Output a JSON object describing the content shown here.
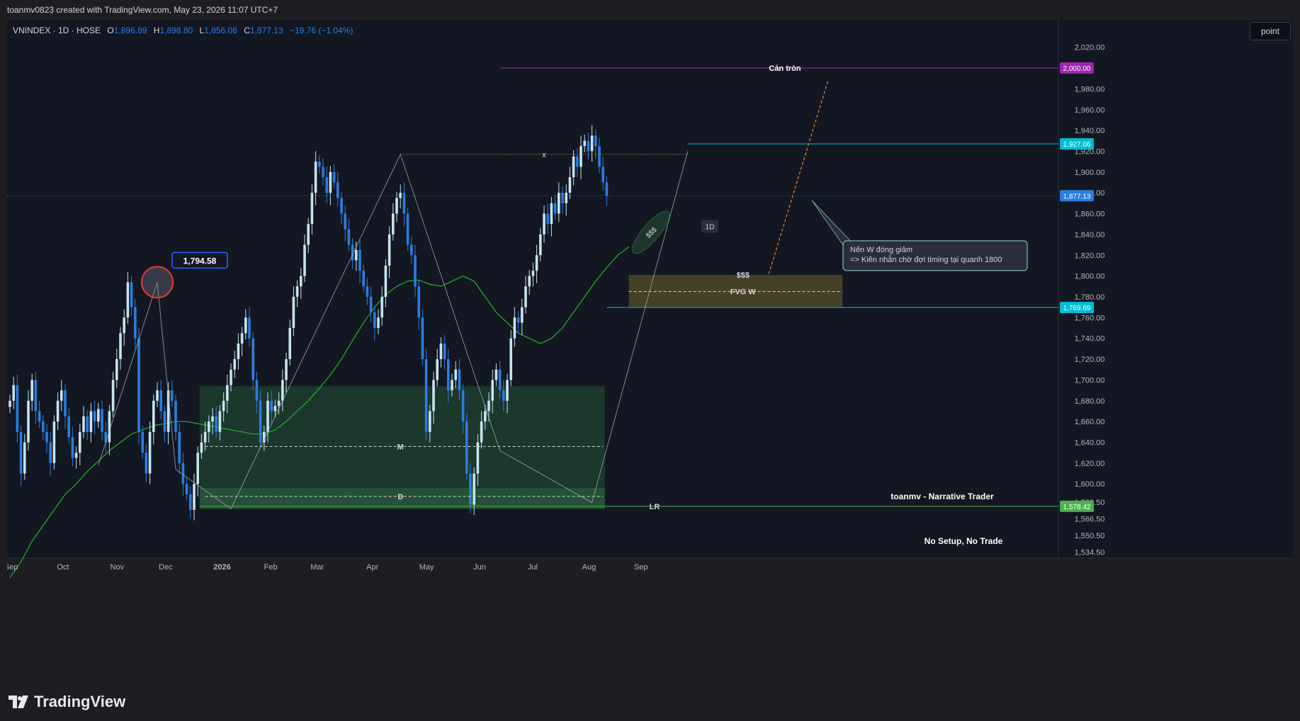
{
  "credit": "toanmv0823 created with TradingView.com, May 23, 2026 11:07 UTC+7",
  "header": {
    "symbol": "VNINDEX · 1D · HOSE",
    "o_label": "O",
    "o_value": "1,896.89",
    "h_label": "H",
    "h_value": "1,898.80",
    "l_label": "L",
    "l_value": "1,856.08",
    "c_label": "C",
    "c_value": "1,877.13",
    "change": "−19.76 (−1.04%)"
  },
  "unit_button": "point",
  "logo_text": "TradingView",
  "colors": {
    "background": "#131722",
    "up": "#c6e3ee",
    "down": "#2a7de1",
    "ema": "#22b02e",
    "magenta": "#9c27b0",
    "cyan": "#00bcd4",
    "zone_green": "#1f3d2e",
    "zone_orange": "#4b4527",
    "last_price": "#2a7de1",
    "lr": "#4caf50"
  },
  "chart_data": {
    "type": "candlestick",
    "symbol": "VNINDEX",
    "interval": "1D",
    "exchange": "HOSE",
    "y_axis_range": [
      1530,
      2045
    ],
    "y_ticks": [
      2020,
      1980,
      1960,
      1940,
      1920,
      1900,
      1880,
      1860,
      1840,
      1820,
      1800,
      1780,
      1760,
      1740,
      1720,
      1700,
      1680,
      1660,
      1640,
      1620,
      1600,
      1582.5,
      1566.5,
      1550.5,
      1534.5
    ],
    "y_tick_labels": [
      "2,020.00",
      "1,980.00",
      "1,960.00",
      "1,940.00",
      "1,920.00",
      "1,900.00",
      "1,880.00",
      "1,860.00",
      "1,840.00",
      "1,820.00",
      "1,800.00",
      "1,780.00",
      "1,760.00",
      "1,740.00",
      "1,720.00",
      "1,700.00",
      "1,680.00",
      "1,660.00",
      "1,640.00",
      "1,620.00",
      "1,600.00",
      "1,582.50",
      "1,566.50",
      "1,550.50",
      "1,534.50"
    ],
    "x_axis": {
      "labels": [
        "Sep",
        "Oct",
        "Nov",
        "Dec",
        "2026",
        "Feb",
        "Mar",
        "Apr",
        "May",
        "Jun",
        "Jul",
        "Aug",
        "Sep"
      ],
      "label_positions": [
        0.5,
        24,
        48.5,
        70.5,
        96,
        118,
        139,
        164,
        188.5,
        212.5,
        236.5,
        262,
        285.5
      ]
    },
    "closes": [
      1680,
      1695,
      1650,
      1610,
      1640,
      1680,
      1700,
      1670,
      1660,
      1650,
      1640,
      1620,
      1660,
      1680,
      1690,
      1665,
      1645,
      1625,
      1630,
      1650,
      1665,
      1650,
      1670,
      1660,
      1672,
      1650,
      1640,
      1670,
      1700,
      1720,
      1745,
      1760,
      1794,
      1770,
      1740,
      1650,
      1630,
      1610,
      1650,
      1680,
      1690,
      1670,
      1650,
      1690,
      1680,
      1650,
      1620,
      1600,
      1590,
      1575,
      1600,
      1630,
      1640,
      1650,
      1660,
      1665,
      1650,
      1670,
      1680,
      1695,
      1710,
      1720,
      1735,
      1745,
      1760,
      1740,
      1700,
      1680,
      1640,
      1650,
      1680,
      1670,
      1675,
      1680,
      1700,
      1720,
      1750,
      1780,
      1790,
      1800,
      1830,
      1850,
      1880,
      1910,
      1905,
      1895,
      1880,
      1900,
      1890,
      1875,
      1860,
      1845,
      1830,
      1815,
      1825,
      1805,
      1790,
      1780,
      1765,
      1750,
      1760,
      1780,
      1810,
      1840,
      1860,
      1875,
      1880,
      1860,
      1830,
      1820,
      1790,
      1760,
      1720,
      1650,
      1670,
      1700,
      1720,
      1735,
      1720,
      1690,
      1700,
      1710,
      1690,
      1660,
      1610,
      1580,
      1610,
      1640,
      1660,
      1670,
      1680,
      1700,
      1710,
      1690,
      1680,
      1700,
      1740,
      1760,
      1755,
      1770,
      1790,
      1800,
      1805,
      1820,
      1840,
      1860,
      1850,
      1870,
      1860,
      1880,
      1870,
      1880,
      1895,
      1915,
      1905,
      1925,
      1930,
      1920,
      1935,
      1925,
      1905,
      1890,
      1877.13
    ],
    "ema_series": {
      "start": 0,
      "values": [
        1510,
        1525,
        1545,
        1560,
        1575,
        1590,
        1600,
        1612,
        1622,
        1632,
        1640,
        1648,
        1652,
        1656,
        1658,
        1660,
        1660,
        1658,
        1656,
        1654,
        1652,
        1650,
        1648,
        1648,
        1652,
        1660,
        1670,
        1680,
        1692,
        1705,
        1720,
        1738,
        1755,
        1770,
        1782,
        1790,
        1795,
        1796,
        1792,
        1790,
        1795,
        1800,
        1795,
        1780,
        1765,
        1755,
        1745,
        1740,
        1735,
        1740,
        1750,
        1765,
        1780,
        1795,
        1808,
        1820,
        1828
      ]
    },
    "last_price": 1877.13,
    "last_price_label": "1,877.13",
    "price_tags": [
      {
        "value": 2000,
        "label": "2,000.00",
        "color": "#9c27b0"
      },
      {
        "value": 1927.06,
        "label": "1,927.06",
        "color": "#00bcd4"
      },
      {
        "value": 1769.69,
        "label": "1,769.69",
        "color": "#00bcd4"
      },
      {
        "value": 1578.42,
        "label": "1,578.42",
        "color": "#4caf50"
      }
    ],
    "annotations": {
      "peak_label": "1,794.58",
      "x_label": "x",
      "m_label": "M",
      "d_label": "D",
      "lr_label": "LR",
      "can_tron": "Cản tròn",
      "liq_top": "$$$",
      "liq_ellipse": "$$$",
      "fvg_label": "FVG W",
      "tf_badge": "1D",
      "callout_line1": "Nến W đóng giảm",
      "callout_line2": "=> Kiên nhẫn chờ đợi timing tại quanh 1800",
      "brand": "toanmv - Narrative Trader",
      "motto": "No Setup, No Trade"
    }
  }
}
